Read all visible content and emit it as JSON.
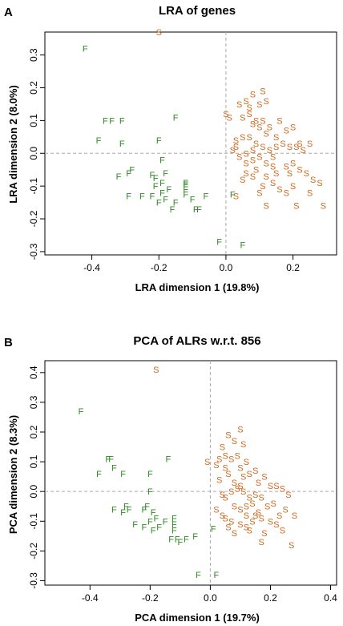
{
  "colors": {
    "F": "#2e8b22",
    "S": "#d2691e",
    "axis": "#000000",
    "ref_line": "#aaaaaa"
  },
  "chart_data": [
    {
      "type": "scatter",
      "panel_label": "A",
      "title": "LRA of genes",
      "xlabel": "LRA dimension 1 (19.8%)",
      "ylabel": "LRA dimension 2 (8.0%)",
      "xlim": [
        -0.54,
        0.33
      ],
      "ylim": [
        -0.31,
        0.37
      ],
      "xticks": [
        -0.4,
        -0.2,
        0.0,
        0.2
      ],
      "xtick_labels": [
        "-0.4",
        "-0.2",
        "0.0",
        "0.2"
      ],
      "yticks": [
        -0.3,
        -0.2,
        -0.1,
        0.0,
        0.1,
        0.2,
        0.3
      ],
      "ytick_labels": [
        "-0.3",
        "-0.2",
        "-0.1",
        "0.0",
        "0.1",
        "0.2",
        "0.3"
      ],
      "reference_lines": {
        "x": 0,
        "y": 0,
        "style": "dashed"
      },
      "points": {
        "F": [
          [
            -0.42,
            0.32
          ],
          [
            -0.36,
            0.1
          ],
          [
            -0.34,
            0.1
          ],
          [
            -0.31,
            0.1
          ],
          [
            -0.38,
            0.04
          ],
          [
            -0.31,
            0.03
          ],
          [
            -0.2,
            0.04
          ],
          [
            -0.19,
            -0.02
          ],
          [
            -0.15,
            0.11
          ],
          [
            -0.28,
            -0.05
          ],
          [
            -0.29,
            -0.06
          ],
          [
            -0.32,
            -0.07
          ],
          [
            -0.22,
            -0.065
          ],
          [
            -0.21,
            -0.075
          ],
          [
            -0.19,
            -0.09
          ],
          [
            -0.18,
            -0.06
          ],
          [
            -0.19,
            -0.12
          ],
          [
            -0.21,
            -0.1
          ],
          [
            -0.17,
            -0.11
          ],
          [
            -0.22,
            -0.13
          ],
          [
            -0.29,
            -0.13
          ],
          [
            -0.25,
            -0.13
          ],
          [
            -0.15,
            -0.15
          ],
          [
            -0.16,
            -0.17
          ],
          [
            -0.2,
            -0.15
          ],
          [
            -0.18,
            -0.14
          ],
          [
            -0.12,
            -0.09
          ],
          [
            -0.12,
            -0.095
          ],
          [
            -0.12,
            -0.11
          ],
          [
            -0.12,
            -0.125
          ],
          [
            -0.09,
            -0.17
          ],
          [
            -0.08,
            -0.17
          ],
          [
            -0.1,
            -0.14
          ],
          [
            -0.06,
            -0.13
          ],
          [
            0.02,
            -0.125
          ],
          [
            -0.02,
            -0.27
          ],
          [
            0.05,
            -0.28
          ]
        ],
        "S": [
          [
            -0.2,
            0.37
          ],
          [
            0.08,
            0.18
          ],
          [
            0.06,
            0.16
          ],
          [
            0.1,
            0.15
          ],
          [
            0.11,
            0.19
          ],
          [
            0.12,
            0.16
          ],
          [
            0.04,
            0.15
          ],
          [
            0.07,
            0.12
          ],
          [
            0.09,
            0.1
          ],
          [
            0.08,
            0.09
          ],
          [
            0.11,
            0.1
          ],
          [
            0.13,
            0.08
          ],
          [
            0.05,
            0.11
          ],
          [
            0.05,
            0.05
          ],
          [
            0.03,
            0.04
          ],
          [
            0.1,
            0.08
          ],
          [
            0.12,
            0.06
          ],
          [
            0.15,
            0.05
          ],
          [
            0.16,
            0.1
          ],
          [
            0.18,
            0.07
          ],
          [
            0.2,
            0.08
          ],
          [
            0.22,
            0.03
          ],
          [
            0.25,
            0.03
          ],
          [
            0.23,
            0.01
          ],
          [
            0.21,
            0.02
          ],
          [
            0.19,
            0.02
          ],
          [
            0.17,
            0.03
          ],
          [
            0.15,
            0.02
          ],
          [
            0.13,
            0.01
          ],
          [
            0.11,
            0.02
          ],
          [
            0.09,
            0.03
          ],
          [
            0.08,
            0.01
          ],
          [
            0.1,
            -0.01
          ],
          [
            0.08,
            -0.02
          ],
          [
            0.06,
            -0.03
          ],
          [
            0.07,
            0.05
          ],
          [
            0.03,
            0.02
          ],
          [
            0.02,
            0.01
          ],
          [
            0.04,
            -0.01
          ],
          [
            0.06,
            0.0
          ],
          [
            0.12,
            -0.03
          ],
          [
            0.14,
            -0.04
          ],
          [
            0.15,
            -0.06
          ],
          [
            0.18,
            -0.04
          ],
          [
            0.2,
            -0.03
          ],
          [
            0.22,
            -0.05
          ],
          [
            0.24,
            -0.06
          ],
          [
            0.26,
            -0.08
          ],
          [
            0.2,
            -0.1
          ],
          [
            0.18,
            -0.12
          ],
          [
            0.16,
            -0.11
          ],
          [
            0.14,
            -0.09
          ],
          [
            0.12,
            -0.07
          ],
          [
            0.09,
            -0.05
          ],
          [
            0.06,
            -0.06
          ],
          [
            0.08,
            -0.07
          ],
          [
            0.11,
            -0.1
          ],
          [
            0.05,
            -0.08
          ],
          [
            0.03,
            -0.13
          ],
          [
            0.29,
            -0.16
          ],
          [
            0.07,
            0.14
          ],
          [
            0.01,
            0.11
          ],
          [
            0.14,
            -0.01
          ],
          [
            0.19,
            -0.06
          ],
          [
            0.25,
            -0.12
          ],
          [
            0.21,
            -0.16
          ],
          [
            0.12,
            -0.16
          ],
          [
            0.1,
            -0.12
          ],
          [
            0.28,
            -0.09
          ],
          [
            0.0,
            0.12
          ]
        ]
      }
    },
    {
      "type": "scatter",
      "panel_label": "B",
      "title": "PCA of ALRs w.r.t. 856",
      "xlabel": "PCA dimension 1 (19.7%)",
      "ylabel": "PCA dimension 2 (8.3%)",
      "xlim": [
        -0.55,
        0.42
      ],
      "ylim": [
        -0.315,
        0.44
      ],
      "xticks": [
        -0.4,
        -0.2,
        0.0,
        0.2,
        0.4
      ],
      "xtick_labels": [
        "-0.4",
        "-0.2",
        "0.0",
        "0.2",
        "0.4"
      ],
      "yticks": [
        -0.3,
        -0.2,
        -0.1,
        0.0,
        0.1,
        0.2,
        0.3,
        0.4
      ],
      "ytick_labels": [
        "-0.3",
        "-0.2",
        "-0.1",
        "0.0",
        "0.1",
        "0.2",
        "0.3",
        "0.4"
      ],
      "reference_lines": {
        "x": 0,
        "y": 0,
        "style": "dashed"
      },
      "points": {
        "F": [
          [
            -0.43,
            0.27
          ],
          [
            -0.34,
            0.11
          ],
          [
            -0.33,
            0.11
          ],
          [
            -0.32,
            0.08
          ],
          [
            -0.37,
            0.06
          ],
          [
            -0.29,
            0.06
          ],
          [
            -0.2,
            0.06
          ],
          [
            -0.14,
            0.11
          ],
          [
            -0.2,
            0.0
          ],
          [
            -0.32,
            -0.06
          ],
          [
            -0.28,
            -0.05
          ],
          [
            -0.27,
            -0.06
          ],
          [
            -0.29,
            -0.07
          ],
          [
            -0.22,
            -0.06
          ],
          [
            -0.21,
            -0.05
          ],
          [
            -0.19,
            -0.07
          ],
          [
            -0.18,
            -0.09
          ],
          [
            -0.2,
            -0.1
          ],
          [
            -0.17,
            -0.12
          ],
          [
            -0.19,
            -0.13
          ],
          [
            -0.22,
            -0.12
          ],
          [
            -0.25,
            -0.11
          ],
          [
            -0.15,
            -0.1
          ],
          [
            -0.12,
            -0.09
          ],
          [
            -0.12,
            -0.11
          ],
          [
            -0.12,
            -0.13
          ],
          [
            -0.13,
            -0.16
          ],
          [
            -0.11,
            -0.16
          ],
          [
            -0.1,
            -0.17
          ],
          [
            -0.08,
            -0.16
          ],
          [
            -0.05,
            -0.15
          ],
          [
            0.01,
            -0.125
          ],
          [
            -0.04,
            -0.28
          ],
          [
            0.02,
            -0.28
          ]
        ],
        "S": [
          [
            -0.18,
            0.41
          ],
          [
            0.06,
            0.19
          ],
          [
            0.08,
            0.17
          ],
          [
            0.1,
            0.21
          ],
          [
            0.11,
            0.16
          ],
          [
            0.04,
            0.15
          ],
          [
            0.05,
            0.12
          ],
          [
            0.07,
            0.11
          ],
          [
            0.09,
            0.12
          ],
          [
            0.12,
            0.1
          ],
          [
            0.13,
            0.06
          ],
          [
            0.15,
            0.07
          ],
          [
            0.16,
            0.03
          ],
          [
            0.18,
            0.05
          ],
          [
            0.2,
            0.02
          ],
          [
            0.22,
            0.02
          ],
          [
            0.24,
            0.01
          ],
          [
            0.26,
            -0.01
          ],
          [
            0.21,
            -0.04
          ],
          [
            0.19,
            -0.05
          ],
          [
            0.17,
            -0.02
          ],
          [
            0.15,
            -0.01
          ],
          [
            0.13,
            -0.02
          ],
          [
            0.11,
            0.0
          ],
          [
            0.09,
            0.01
          ],
          [
            0.08,
            0.03
          ],
          [
            0.06,
            0.06
          ],
          [
            0.05,
            0.08
          ],
          [
            0.03,
            0.11
          ],
          [
            0.02,
            0.09
          ],
          [
            -0.01,
            0.1
          ],
          [
            0.07,
            0.0
          ],
          [
            0.05,
            -0.02
          ],
          [
            0.04,
            -0.01
          ],
          [
            0.03,
            0.04
          ],
          [
            0.08,
            -0.05
          ],
          [
            0.1,
            -0.06
          ],
          [
            0.12,
            -0.05
          ],
          [
            0.14,
            -0.04
          ],
          [
            0.15,
            -0.08
          ],
          [
            0.17,
            -0.09
          ],
          [
            0.2,
            -0.1
          ],
          [
            0.22,
            -0.11
          ],
          [
            0.24,
            -0.13
          ],
          [
            0.25,
            -0.06
          ],
          [
            0.28,
            -0.08
          ],
          [
            0.23,
            -0.08
          ],
          [
            0.12,
            -0.12
          ],
          [
            0.1,
            -0.11
          ],
          [
            0.07,
            -0.1
          ],
          [
            0.05,
            -0.09
          ],
          [
            0.04,
            -0.08
          ],
          [
            0.02,
            -0.06
          ],
          [
            0.06,
            -0.12
          ],
          [
            0.1,
            0.08
          ],
          [
            0.1,
            0.02
          ],
          [
            0.12,
            -0.08
          ],
          [
            0.14,
            -0.1
          ],
          [
            0.18,
            -0.14
          ],
          [
            0.16,
            -0.07
          ],
          [
            0.11,
            0.05
          ],
          [
            0.13,
            -0.13
          ],
          [
            0.08,
            -0.14
          ],
          [
            0.27,
            -0.18
          ],
          [
            0.17,
            -0.17
          ]
        ]
      }
    }
  ]
}
